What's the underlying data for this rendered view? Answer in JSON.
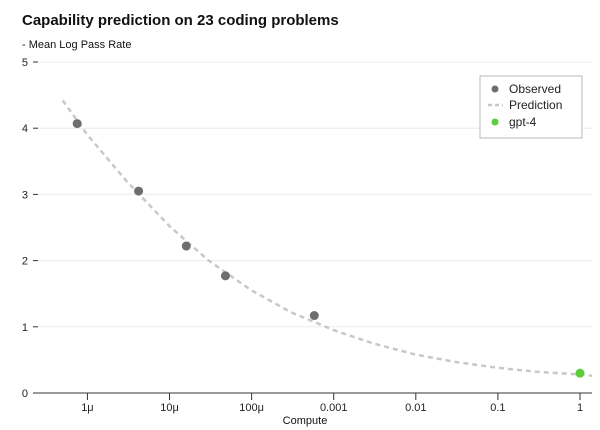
{
  "chart_data": {
    "type": "scatter",
    "title": "Capability prediction on 23 coding problems",
    "ylabel": "- Mean Log Pass Rate",
    "xlabel": "Compute",
    "xscale": "log",
    "xlim": [
      2.5e-07,
      1.4
    ],
    "ylim": [
      0,
      5
    ],
    "x_ticks": [
      {
        "value": 1e-06,
        "label": "1μ"
      },
      {
        "value": 1e-05,
        "label": "10μ"
      },
      {
        "value": 0.0001,
        "label": "100μ"
      },
      {
        "value": 0.001,
        "label": "0.001"
      },
      {
        "value": 0.01,
        "label": "0.01"
      },
      {
        "value": 0.1,
        "label": "0.1"
      },
      {
        "value": 1,
        "label": "1"
      }
    ],
    "y_ticks": [
      0,
      1,
      2,
      3,
      4,
      5
    ],
    "grid": true,
    "legend_position": "top-right",
    "series": [
      {
        "name": "Observed",
        "kind": "points",
        "color": "#6e6e6e",
        "points": [
          {
            "x": 7.5e-07,
            "y": 4.07
          },
          {
            "x": 4.2e-06,
            "y": 3.05
          },
          {
            "x": 1.6e-05,
            "y": 2.22
          },
          {
            "x": 4.8e-05,
            "y": 1.77
          },
          {
            "x": 0.00058,
            "y": 1.17
          }
        ]
      },
      {
        "name": "Prediction",
        "kind": "dashed-line",
        "color": "#c8c8c8",
        "points": [
          {
            "x": 5e-07,
            "y": 4.42
          },
          {
            "x": 1e-06,
            "y": 3.9
          },
          {
            "x": 3e-06,
            "y": 3.2
          },
          {
            "x": 1e-05,
            "y": 2.52
          },
          {
            "x": 3e-05,
            "y": 2.0
          },
          {
            "x": 0.0001,
            "y": 1.55
          },
          {
            "x": 0.0003,
            "y": 1.22
          },
          {
            "x": 0.001,
            "y": 0.95
          },
          {
            "x": 0.003,
            "y": 0.75
          },
          {
            "x": 0.01,
            "y": 0.58
          },
          {
            "x": 0.03,
            "y": 0.47
          },
          {
            "x": 0.1,
            "y": 0.38
          },
          {
            "x": 0.3,
            "y": 0.32
          },
          {
            "x": 1,
            "y": 0.28
          },
          {
            "x": 1.4,
            "y": 0.26
          }
        ]
      },
      {
        "name": "gpt-4",
        "kind": "points",
        "color": "#5ccc3c",
        "points": [
          {
            "x": 1,
            "y": 0.3
          }
        ]
      }
    ]
  }
}
